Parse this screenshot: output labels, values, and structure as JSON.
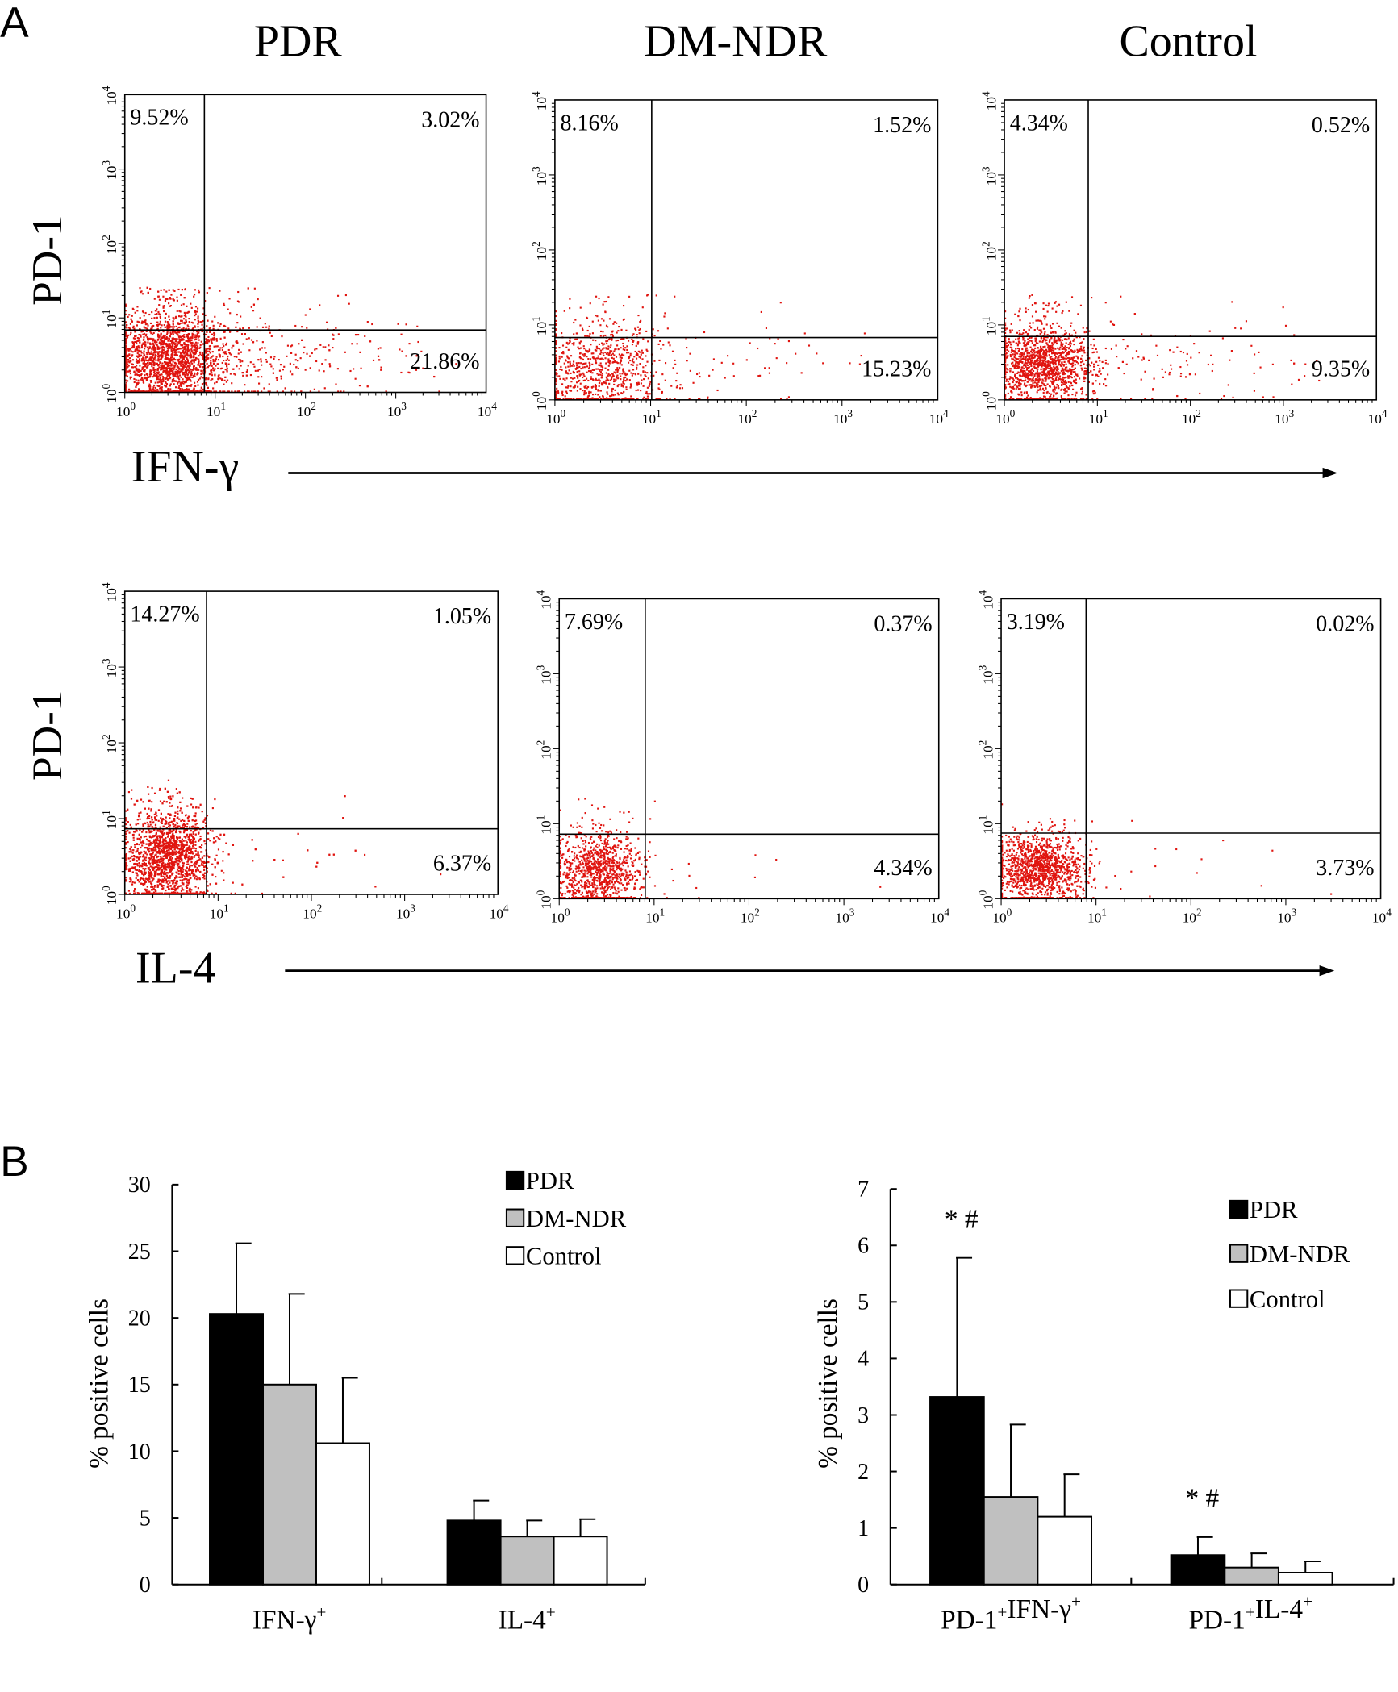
{
  "figure": {
    "panel_a_label": "A",
    "panel_b_label": "B"
  },
  "chart_data": [
    {
      "type": "scatter",
      "panel": "A",
      "columns": [
        "PDR",
        "DM-NDR",
        "Control"
      ],
      "scale": "log",
      "xlim": [
        1,
        10000
      ],
      "ylim": [
        1,
        10000
      ],
      "tick_base": "10",
      "tick_exponents": [
        "0",
        "1",
        "2",
        "3",
        "4"
      ],
      "point_color": "#e0140f",
      "rows": [
        {
          "ylabel": "PD-1",
          "xlabel": "IFN-γ",
          "plots": [
            {
              "group": "PDR",
              "upper_left": "9.52%",
              "upper_right": "3.02%",
              "lower_right": "21.86%"
            },
            {
              "group": "DM-NDR",
              "upper_left": "8.16%",
              "upper_right": "1.52%",
              "lower_right": "15.23%"
            },
            {
              "group": "Control",
              "upper_left": "4.34%",
              "upper_right": "0.52%",
              "lower_right": "9.35%"
            }
          ]
        },
        {
          "ylabel": "PD-1",
          "xlabel": "IL-4",
          "plots": [
            {
              "group": "PDR",
              "upper_left": "14.27%",
              "upper_right": "1.05%",
              "lower_right": "6.37%"
            },
            {
              "group": "DM-NDR",
              "upper_left": "7.69%",
              "upper_right": "0.37%",
              "lower_right": "4.34%"
            },
            {
              "group": "Control",
              "upper_left": "3.19%",
              "upper_right": "0.02%",
              "lower_right": "3.73%"
            }
          ]
        }
      ]
    },
    {
      "type": "bar",
      "panel": "B-left",
      "ylabel": "% positive cells",
      "ylim": [
        0,
        30
      ],
      "yticks": [
        "0",
        "5",
        "10",
        "15",
        "20",
        "25",
        "30"
      ],
      "categories": [
        [
          {
            "t": "IFN-γ",
            "sup": "+"
          }
        ],
        [
          {
            "t": "IL-4",
            "sup": "+"
          }
        ]
      ],
      "legend": "top-right",
      "series": [
        {
          "name": "PDR",
          "color": "#000000",
          "values": [
            20.3,
            4.8
          ],
          "error": [
            5.3,
            1.5
          ]
        },
        {
          "name": "DM-NDR",
          "color": "#c0c0c0",
          "values": [
            15.0,
            3.6
          ],
          "error": [
            6.8,
            1.2
          ]
        },
        {
          "name": "Control",
          "color": "#ffffff",
          "values": [
            10.6,
            3.6
          ],
          "error": [
            4.9,
            1.3
          ]
        }
      ],
      "annotations": []
    },
    {
      "type": "bar",
      "panel": "B-right",
      "ylabel": "% positive cells",
      "ylim": [
        0,
        7
      ],
      "yticks": [
        "0",
        "1",
        "2",
        "3",
        "4",
        "5",
        "6",
        "7"
      ],
      "categories": [
        [
          {
            "t": "PD-1",
            "sup": "+"
          },
          {
            "t": "IFN-γ",
            "sup": "+"
          }
        ],
        [
          {
            "t": "PD-1",
            "sup": "+"
          },
          {
            "t": "IL-4",
            "sup": "+"
          }
        ]
      ],
      "legend": "top-right",
      "series": [
        {
          "name": "PDR",
          "color": "#000000",
          "values": [
            3.32,
            0.52
          ],
          "error": [
            2.46,
            0.32
          ]
        },
        {
          "name": "DM-NDR",
          "color": "#c0c0c0",
          "values": [
            1.55,
            0.3
          ],
          "error": [
            1.28,
            0.25
          ]
        },
        {
          "name": "Control",
          "color": "#ffffff",
          "values": [
            1.2,
            0.21
          ],
          "error": [
            0.75,
            0.2
          ]
        }
      ],
      "annotations": [
        {
          "category": 0,
          "series": "PDR",
          "text": "* #"
        },
        {
          "category": 1,
          "series": "PDR",
          "text": "* #"
        }
      ]
    }
  ]
}
